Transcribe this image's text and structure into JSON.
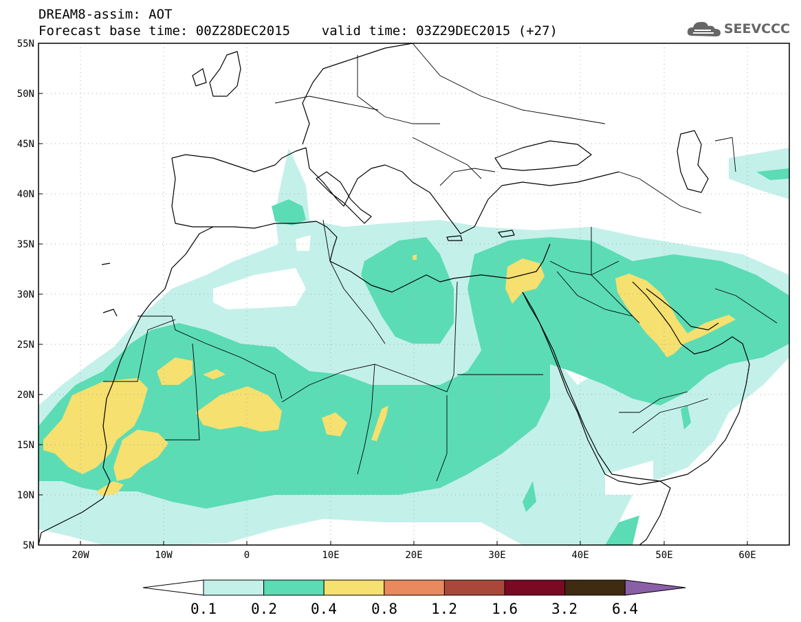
{
  "title": {
    "line1": "DREAM8-assim: AOT",
    "line2": "Forecast base time: 00Z28DEC2015    valid time: 03Z29DEC2015 (+27)"
  },
  "logo": {
    "text": "SEEVCCC",
    "icon": "cloud-icon"
  },
  "map": {
    "projection": "cylindrical",
    "lon_range": [
      -25,
      65
    ],
    "lat_range": [
      5,
      55
    ],
    "lat_labels": [
      "55N",
      "50N",
      "45N",
      "40N",
      "35N",
      "30N",
      "25N",
      "20N",
      "15N",
      "10N",
      "5N"
    ],
    "lon_labels": [
      "20W",
      "10W",
      "0",
      "10E",
      "20E",
      "30E",
      "40E",
      "50E",
      "60E"
    ],
    "grid": "dotted"
  },
  "colorbar": {
    "levels": [
      "0.1",
      "0.2",
      "0.4",
      "0.8",
      "1.2",
      "1.6",
      "3.2",
      "6.4"
    ],
    "colors": [
      "#ffffff",
      "#c4f0ea",
      "#5bdcb4",
      "#f5e070",
      "#e9895e",
      "#a9483a",
      "#7a0a23",
      "#3f2a12",
      "#8b5ea8"
    ]
  }
}
